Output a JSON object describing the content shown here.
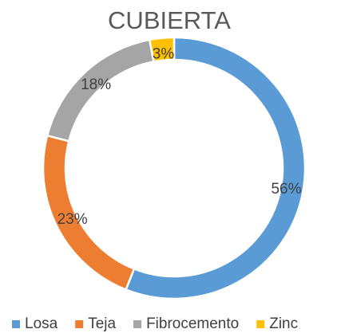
{
  "chart_data": {
    "type": "donut",
    "title": "CUBIERTA",
    "categories": [
      "Losa",
      "Teja",
      "Fibrocemento",
      "Zinc"
    ],
    "values": [
      56,
      23,
      18,
      3
    ],
    "value_labels": [
      "56%",
      "23%",
      "18%",
      "3%"
    ],
    "colors": [
      "#5b9bd5",
      "#ed7d31",
      "#a5a5a5",
      "#ffc000"
    ],
    "legend": "bottom"
  }
}
